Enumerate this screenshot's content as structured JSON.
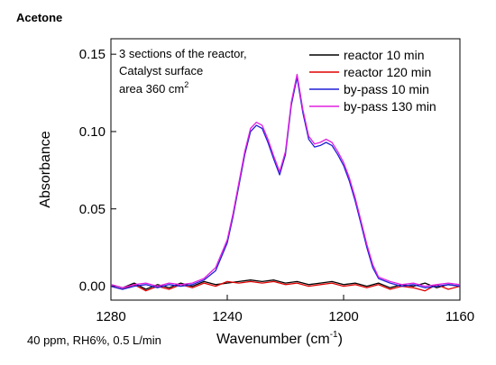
{
  "header": {
    "title": "Acetone",
    "note": "40 ppm, RH6%, 0.5 L/min"
  },
  "chart_data": {
    "type": "line",
    "xlabel_main": "Wavenumber (cm",
    "xlabel_sup": "-1",
    "xlabel_end": ")",
    "ylabel": "Absorbance",
    "xlim": [
      1280,
      1160
    ],
    "ylim": [
      -0.009,
      0.16
    ],
    "x_reversed": true,
    "x_ticks": [
      {
        "value": 1280,
        "label": "1280"
      },
      {
        "value": 1240,
        "label": "1240"
      },
      {
        "value": 1200,
        "label": "1200"
      },
      {
        "value": 1160,
        "label": "1160"
      }
    ],
    "y_ticks": [
      {
        "value": 0.0,
        "label": "0.00"
      },
      {
        "value": 0.05,
        "label": "0.05"
      },
      {
        "value": 0.1,
        "label": "0.10"
      },
      {
        "value": 0.15,
        "label": "0.15"
      }
    ],
    "annotation": {
      "line1": "3 sections of the reactor,",
      "line2": "Catalyst surface",
      "line3_main": "area 360 cm",
      "line3_sup": "2"
    },
    "legend_position": "top-right",
    "series": [
      {
        "name": "reactor 10 min",
        "color": "#000000",
        "x": [
          1280,
          1276,
          1272,
          1268,
          1264,
          1260,
          1256,
          1252,
          1248,
          1244,
          1240,
          1236,
          1232,
          1228,
          1224,
          1220,
          1216,
          1212,
          1208,
          1204,
          1200,
          1196,
          1192,
          1188,
          1184,
          1180,
          1176,
          1172,
          1168,
          1164,
          1160
        ],
        "y": [
          0.001,
          -0.001,
          0.002,
          -0.002,
          0.001,
          -0.001,
          0.002,
          0.0,
          0.003,
          0.001,
          0.002,
          0.003,
          0.004,
          0.003,
          0.004,
          0.002,
          0.003,
          0.001,
          0.002,
          0.003,
          0.001,
          0.002,
          0.0,
          0.002,
          -0.001,
          0.001,
          0.0,
          0.002,
          -0.001,
          0.001,
          0.0
        ]
      },
      {
        "name": "reactor 120 min",
        "color": "#e00000",
        "x": [
          1280,
          1276,
          1272,
          1268,
          1264,
          1260,
          1256,
          1252,
          1248,
          1244,
          1240,
          1236,
          1232,
          1228,
          1224,
          1220,
          1216,
          1212,
          1208,
          1204,
          1200,
          1196,
          1192,
          1188,
          1184,
          1180,
          1176,
          1172,
          1168,
          1164,
          1160
        ],
        "y": [
          0.0,
          -0.002,
          0.001,
          -0.003,
          0.0,
          -0.002,
          0.001,
          -0.001,
          0.002,
          0.0,
          0.003,
          0.002,
          0.003,
          0.002,
          0.003,
          0.001,
          0.002,
          0.0,
          0.001,
          0.002,
          0.0,
          0.001,
          -0.001,
          0.001,
          -0.002,
          0.0,
          -0.001,
          -0.003,
          0.001,
          -0.002,
          0.0
        ]
      },
      {
        "name": "by-pass 10 min",
        "color": "#1f1fd6",
        "x": [
          1280,
          1276,
          1272,
          1268,
          1264,
          1260,
          1256,
          1252,
          1248,
          1244,
          1240,
          1238,
          1236,
          1234,
          1232,
          1230,
          1228,
          1226,
          1224,
          1222,
          1220,
          1218,
          1216,
          1214,
          1212,
          1210,
          1208,
          1206,
          1204,
          1202,
          1200,
          1198,
          1196,
          1194,
          1192,
          1190,
          1188,
          1184,
          1180,
          1176,
          1172,
          1168,
          1164,
          1160
        ],
        "y": [
          0.0,
          -0.002,
          0.0,
          0.001,
          -0.001,
          0.001,
          0.0,
          0.001,
          0.004,
          0.01,
          0.028,
          0.045,
          0.065,
          0.085,
          0.1,
          0.104,
          0.102,
          0.093,
          0.082,
          0.072,
          0.085,
          0.117,
          0.135,
          0.112,
          0.095,
          0.09,
          0.091,
          0.093,
          0.091,
          0.085,
          0.078,
          0.068,
          0.055,
          0.04,
          0.025,
          0.012,
          0.005,
          0.002,
          0.0,
          0.001,
          -0.001,
          0.0,
          0.001,
          0.0
        ]
      },
      {
        "name": "by-pass 130 min",
        "color": "#e020e0",
        "x": [
          1280,
          1276,
          1272,
          1268,
          1264,
          1260,
          1256,
          1252,
          1248,
          1244,
          1240,
          1238,
          1236,
          1234,
          1232,
          1230,
          1228,
          1226,
          1224,
          1222,
          1220,
          1218,
          1216,
          1214,
          1212,
          1210,
          1208,
          1206,
          1204,
          1202,
          1200,
          1198,
          1196,
          1194,
          1192,
          1190,
          1188,
          1184,
          1180,
          1176,
          1172,
          1168,
          1164,
          1160
        ],
        "y": [
          0.001,
          -0.001,
          0.001,
          0.002,
          0.0,
          0.002,
          0.001,
          0.002,
          0.005,
          0.012,
          0.03,
          0.047,
          0.067,
          0.087,
          0.102,
          0.106,
          0.104,
          0.095,
          0.084,
          0.074,
          0.087,
          0.119,
          0.137,
          0.114,
          0.097,
          0.092,
          0.093,
          0.095,
          0.093,
          0.087,
          0.08,
          0.07,
          0.057,
          0.042,
          0.027,
          0.014,
          0.006,
          0.003,
          0.001,
          0.002,
          0.0,
          0.001,
          0.002,
          0.001
        ]
      }
    ]
  }
}
